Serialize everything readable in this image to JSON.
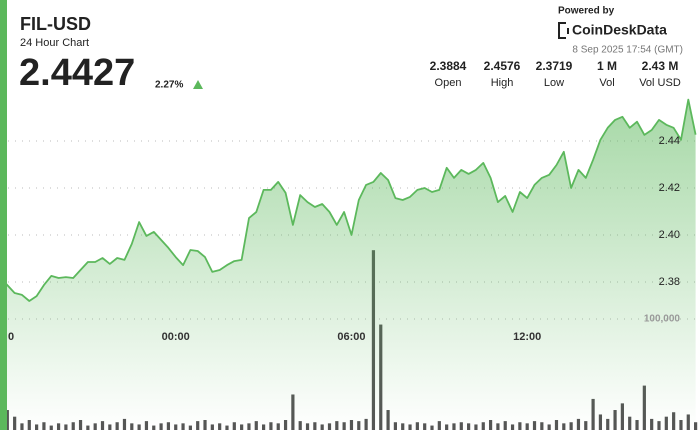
{
  "chart_data": {
    "type": "line",
    "title": "FIL-USD",
    "subtitle": "24 Hour Chart",
    "price": "2.4427",
    "change": "2.27%",
    "powered_by": "Powered by",
    "brand": "CoinDeskData",
    "timestamp": "8 Sep 2025 17:54 (GMT)",
    "stats": [
      {
        "value": "2.3884",
        "label": "Open"
      },
      {
        "value": "2.4576",
        "label": "High"
      },
      {
        "value": "2.3719",
        "label": "Low"
      },
      {
        "value": "1 M",
        "label": "Vol"
      },
      {
        "value": "2.43 M",
        "label": "Vol USD"
      }
    ],
    "x": [
      18,
      18.25,
      18.5,
      18.75,
      19,
      19.25,
      19.5,
      19.75,
      20,
      20.25,
      20.5,
      20.75,
      21,
      21.25,
      21.5,
      21.75,
      22,
      22.25,
      22.5,
      22.75,
      23,
      23.25,
      23.5,
      23.75,
      24,
      24.25,
      24.5,
      24.75,
      25,
      25.25,
      25.5,
      25.75,
      26,
      26.25,
      26.5,
      26.75,
      27,
      27.25,
      27.5,
      27.75,
      28,
      28.25,
      28.5,
      28.75,
      29,
      29.25,
      29.5,
      29.75,
      30,
      30.25,
      30.5,
      30.75,
      31,
      31.25,
      31.5,
      31.75,
      32,
      32.25,
      32.5,
      32.75,
      33,
      33.25,
      33.5,
      33.75,
      34,
      34.25,
      34.5,
      34.75,
      35,
      35.25,
      35.5,
      35.75,
      36,
      36.25,
      36.5,
      36.75,
      37,
      37.25,
      37.5,
      37.75,
      38,
      38.25,
      38.5,
      38.75,
      39,
      39.25,
      39.5,
      39.75,
      40,
      40.25,
      40.5,
      40.75,
      41,
      41.25,
      41.5,
      41.75
    ],
    "series": [
      {
        "color": "#5cb85c",
        "values": [
          2.3821,
          2.3787,
          2.3753,
          2.3745,
          2.3719,
          2.374,
          2.3787,
          2.3826,
          2.3817,
          2.3821,
          2.3817,
          2.3851,
          2.3885,
          2.3885,
          2.3902,
          2.3877,
          2.3902,
          2.3894,
          2.3962,
          2.4055,
          2.3996,
          2.4013,
          2.3979,
          2.3945,
          2.3906,
          2.3872,
          2.3936,
          2.3932,
          2.3906,
          2.3843,
          2.3851,
          2.3872,
          2.3889,
          2.3894,
          2.4072,
          2.4098,
          2.4192,
          2.4192,
          2.4226,
          2.4179,
          2.4043,
          2.417,
          2.414,
          2.4119,
          2.4132,
          2.4098,
          2.4043,
          2.4098,
          2.4,
          2.4149,
          2.4213,
          2.4226,
          2.4264,
          2.4234,
          2.4157,
          2.4149,
          2.4162,
          2.4192,
          2.42,
          2.4183,
          2.4192,
          2.4286,
          2.4243,
          2.4277,
          2.426,
          2.4277,
          2.4307,
          2.4243,
          2.414,
          2.4166,
          2.4098,
          2.4183,
          2.4157,
          2.4213,
          2.4243,
          2.4256,
          2.4298,
          2.4354,
          2.42,
          2.4277,
          2.4243,
          2.432,
          2.4405,
          2.4456,
          2.449,
          2.4503,
          2.4456,
          2.4482,
          2.4426,
          2.4447,
          2.449,
          2.4469,
          2.4456,
          2.4405,
          2.4576,
          2.4427
        ]
      },
      {
        "type": "bar",
        "axis": "y2",
        "color": "#555555",
        "values": [
          8000,
          18000,
          12000,
          6000,
          9000,
          5000,
          7000,
          4000,
          6000,
          5000,
          7000,
          9000,
          4000,
          6000,
          8000,
          5000,
          7000,
          10000,
          6000,
          5000,
          8000,
          4000,
          6000,
          7000,
          5000,
          6000,
          4000,
          8000,
          9000,
          5000,
          6000,
          4000,
          7000,
          5000,
          6000,
          8000,
          5000,
          7000,
          6000,
          9000,
          32000,
          8000,
          6000,
          7000,
          5000,
          6000,
          8000,
          7000,
          9000,
          8000,
          10000,
          162000,
          95000,
          18000,
          7000,
          6000,
          5000,
          7000,
          6000,
          4000,
          8000,
          5000,
          6000,
          7000,
          6000,
          5000,
          7000,
          9000,
          6000,
          8000,
          5000,
          7000,
          6000,
          8000,
          7000,
          5000,
          9000,
          6000,
          7000,
          10000,
          8000,
          28000,
          14000,
          10000,
          18000,
          24000,
          12000,
          9000,
          40000,
          10000,
          8000,
          12000,
          16000,
          9000,
          14000,
          7000
        ]
      }
    ],
    "xlim": [
      18,
      41.9
    ],
    "xticks": [
      {
        "value": 18,
        "label": "0"
      },
      {
        "value": 24,
        "label": "00:00"
      },
      {
        "value": 30,
        "label": "06:00"
      },
      {
        "value": 36,
        "label": "12:00"
      }
    ],
    "ylim": [
      2.36,
      2.46
    ],
    "yticks": [
      2.38,
      {
        "value": 2.4,
        "label": "2.40"
      },
      2.42,
      2.44
    ],
    "y2lim": [
      0,
      300000
    ],
    "y2ticks": [
      {
        "value": 100000,
        "label": "100,000"
      }
    ],
    "grid": true
  }
}
